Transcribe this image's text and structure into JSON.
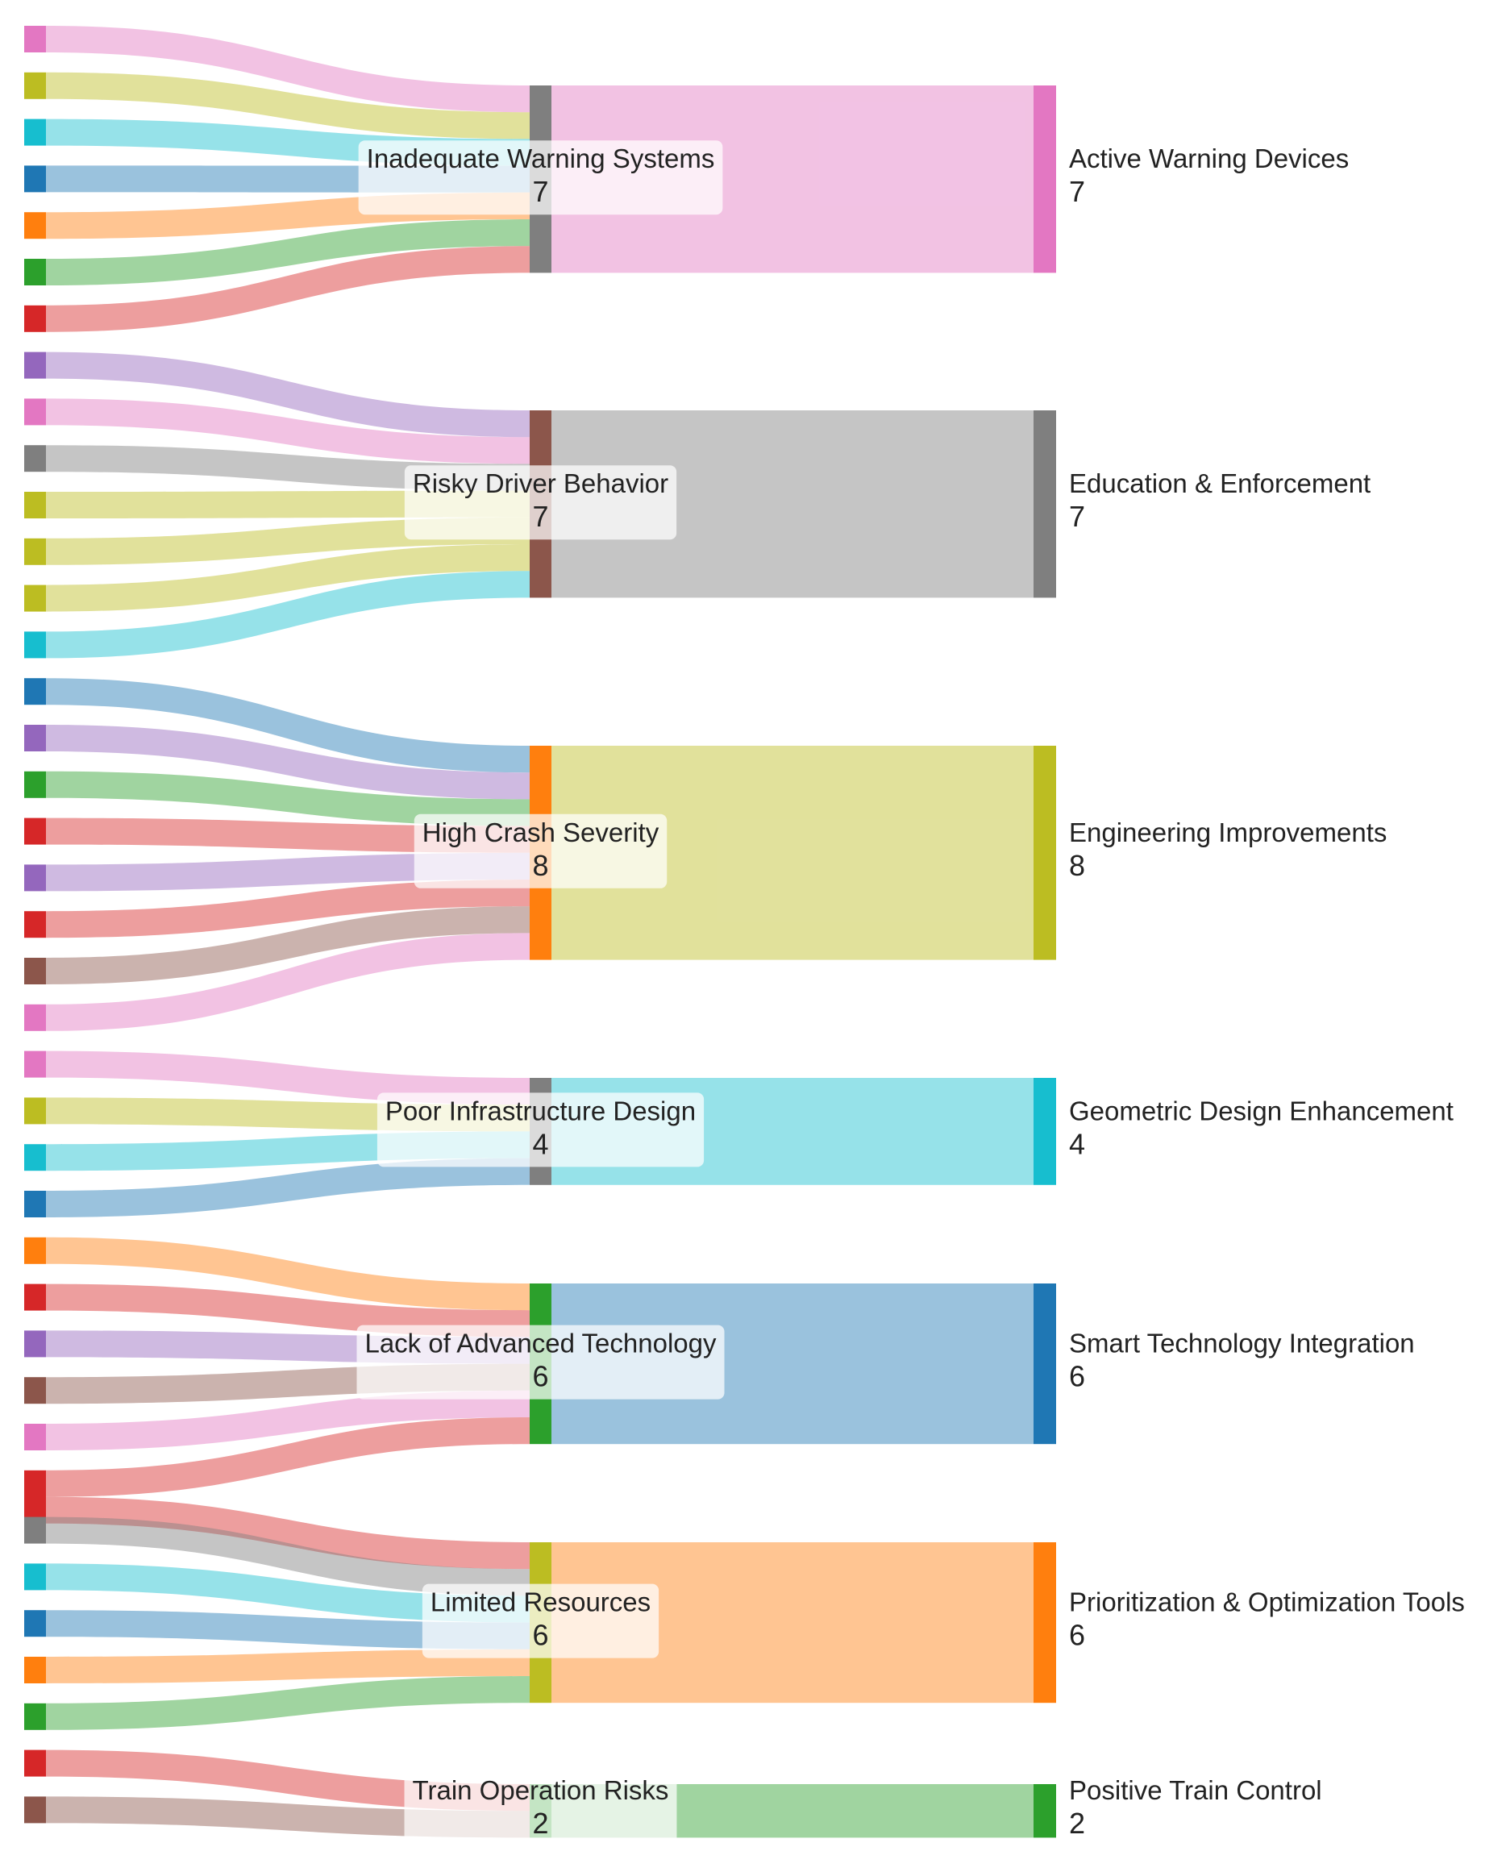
{
  "chart_data": {
    "type": "sankey",
    "colors": {
      "pink": "#e377c2",
      "olive": "#bcbd22",
      "cyan": "#17becf",
      "blue": "#1f77b4",
      "orange": "#ff7f0e",
      "green": "#2ca02c",
      "red": "#d62728",
      "purple": "#9467bd",
      "gray": "#7f7f7f",
      "brown": "#8c564b"
    },
    "groups": [
      {
        "problem": "Inadequate Warning Systems",
        "problem_value": 7,
        "problem_color": "gray",
        "solution": "Active Warning Devices",
        "solution_value": 7,
        "solution_color": "pink",
        "sources": [
          {
            "color": "pink",
            "value": 1
          },
          {
            "color": "olive",
            "value": 1
          },
          {
            "color": "cyan",
            "value": 1
          },
          {
            "color": "blue",
            "value": 1
          },
          {
            "color": "orange",
            "value": 1
          },
          {
            "color": "green",
            "value": 1
          },
          {
            "color": "red",
            "value": 1
          }
        ]
      },
      {
        "problem": "Risky Driver Behavior",
        "problem_value": 7,
        "problem_color": "brown",
        "solution": "Education & Enforcement",
        "solution_value": 7,
        "solution_color": "gray",
        "sources": [
          {
            "color": "purple",
            "value": 1
          },
          {
            "color": "pink",
            "value": 1
          },
          {
            "color": "gray",
            "value": 1
          },
          {
            "color": "olive",
            "value": 1
          },
          {
            "color": "olive",
            "value": 1
          },
          {
            "color": "olive",
            "value": 1
          },
          {
            "color": "cyan",
            "value": 1
          }
        ]
      },
      {
        "problem": "High Crash Severity",
        "problem_value": 8,
        "problem_color": "orange",
        "solution": "Engineering Improvements",
        "solution_value": 8,
        "solution_color": "olive",
        "sources": [
          {
            "color": "blue",
            "value": 1
          },
          {
            "color": "purple",
            "value": 1
          },
          {
            "color": "green",
            "value": 1
          },
          {
            "color": "red",
            "value": 1
          },
          {
            "color": "purple",
            "value": 1
          },
          {
            "color": "red",
            "value": 1
          },
          {
            "color": "brown",
            "value": 1
          },
          {
            "color": "pink",
            "value": 1
          }
        ]
      },
      {
        "problem": "Poor Infrastructure Design",
        "problem_value": 4,
        "problem_color": "gray",
        "solution": "Geometric Design Enhancement",
        "solution_value": 4,
        "solution_color": "cyan",
        "sources": [
          {
            "color": "pink",
            "value": 1
          },
          {
            "color": "olive",
            "value": 1
          },
          {
            "color": "cyan",
            "value": 1
          },
          {
            "color": "blue",
            "value": 1
          }
        ]
      },
      {
        "problem": "Lack of Advanced Technology",
        "problem_value": 6,
        "problem_color": "green",
        "solution": "Smart Technology Integration",
        "solution_value": 6,
        "solution_color": "blue",
        "sources": [
          {
            "color": "orange",
            "value": 1
          },
          {
            "color": "red",
            "value": 1
          },
          {
            "color": "purple",
            "value": 1
          },
          {
            "color": "brown",
            "value": 1
          },
          {
            "color": "pink",
            "value": 1
          },
          {
            "color": "red",
            "value": 1,
            "shared": true
          }
        ]
      },
      {
        "problem": "Limited Resources",
        "problem_value": 6,
        "problem_color": "olive",
        "solution": "Prioritization & Optimization Tools",
        "solution_value": 6,
        "solution_color": "orange",
        "sources": [
          {
            "color": "red",
            "value": 1,
            "shared": true
          },
          {
            "color": "gray",
            "value": 1
          },
          {
            "color": "cyan",
            "value": 1
          },
          {
            "color": "blue",
            "value": 1
          },
          {
            "color": "orange",
            "value": 1
          },
          {
            "color": "green",
            "value": 1
          }
        ]
      },
      {
        "problem": "Train Operation Risks",
        "problem_value": 2,
        "problem_color": "green",
        "solution": "Positive Train Control",
        "solution_value": 2,
        "solution_color": "green",
        "sources": [
          {
            "color": "red",
            "value": 1
          },
          {
            "color": "brown",
            "value": 1
          }
        ]
      }
    ]
  }
}
